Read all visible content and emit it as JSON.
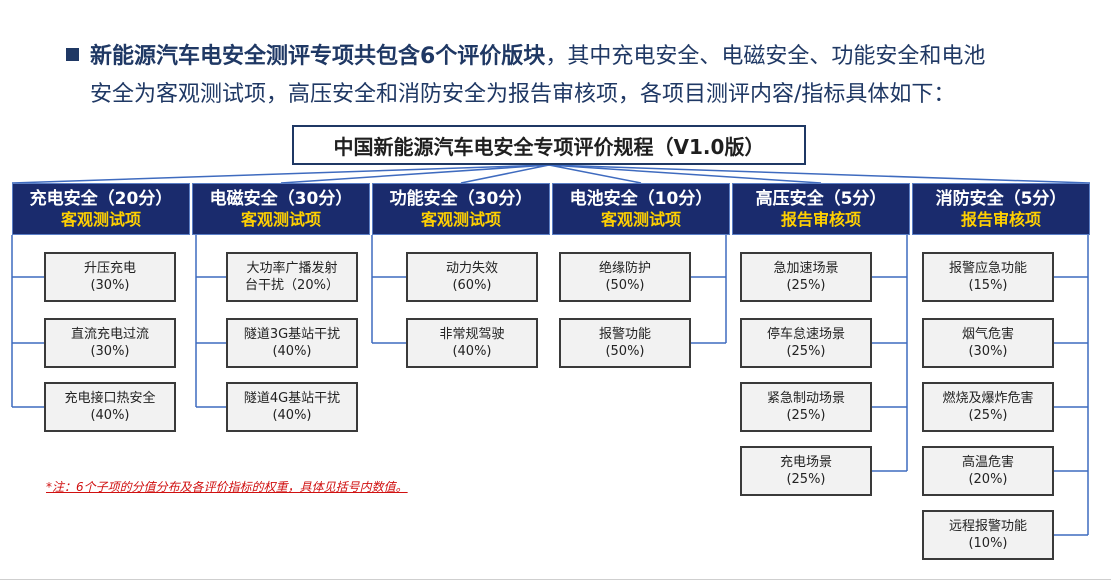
{
  "intro": {
    "line1_bold": "新能源汽车电安全测评专项共包含6个评价版块",
    "line1_rest": "，其中充电安全、电磁安全、功能安全和电池",
    "line2": "安全为客观测试项，高压安全和消防安全为报告审核项，各项目测评内容/指标具体如下："
  },
  "title": "中国新能源汽车电安全专项评价规程（V1.0版）",
  "categories": [
    {
      "name": "充电安全（20分）",
      "type": "客观测试项",
      "items": [
        {
          "line1": "升压充电",
          "line2": "(30%)"
        },
        {
          "line1": "直流充电过流",
          "line2": "(30%)"
        },
        {
          "line1": "充电接口热安全",
          "line2": "(40%)"
        }
      ]
    },
    {
      "name": "电磁安全（30分）",
      "type": "客观测试项",
      "items": [
        {
          "line1": "大功率广播发射",
          "line2": "台干扰（20%）"
        },
        {
          "line1": "隧道3G基站干扰",
          "line2": "(40%)"
        },
        {
          "line1": "隧道4G基站干扰",
          "line2": "(40%)"
        }
      ]
    },
    {
      "name": "功能安全（30分）",
      "type": "客观测试项",
      "items": [
        {
          "line1": "动力失效",
          "line2": "(60%)"
        },
        {
          "line1": "非常规驾驶",
          "line2": "(40%)"
        }
      ]
    },
    {
      "name": "电池安全（10分）",
      "type": "客观测试项",
      "items": [
        {
          "line1": "绝缘防护",
          "line2": "(50%)"
        },
        {
          "line1": "报警功能",
          "line2": "(50%)"
        }
      ]
    },
    {
      "name": "高压安全（5分）",
      "type": "报告审核项",
      "items": [
        {
          "line1": "急加速场景",
          "line2": "(25%)"
        },
        {
          "line1": "停车怠速场景",
          "line2": "(25%)"
        },
        {
          "line1": "紧急制动场景",
          "line2": "(25%)"
        },
        {
          "line1": "充电场景",
          "line2": "(25%)"
        }
      ]
    },
    {
      "name": "消防安全（5分）",
      "type": "报告审核项",
      "items": [
        {
          "line1": "报警应急功能",
          "line2": "(15%)"
        },
        {
          "line1": "烟气危害",
          "line2": "(30%)"
        },
        {
          "line1": "燃烧及爆炸危害",
          "line2": "(25%)"
        },
        {
          "line1": "高温危害",
          "line2": "(20%)"
        },
        {
          "line1": "远程报警功能",
          "line2": "(10%)"
        }
      ]
    }
  ],
  "note": "*注：6个子项的分值分布及各评价指标的权重，具体见括号内数值。",
  "colors": {
    "primary": "#1a2b6d",
    "accent": "#ffd000",
    "connector": "#3f6bbf",
    "note": "#d01010"
  }
}
